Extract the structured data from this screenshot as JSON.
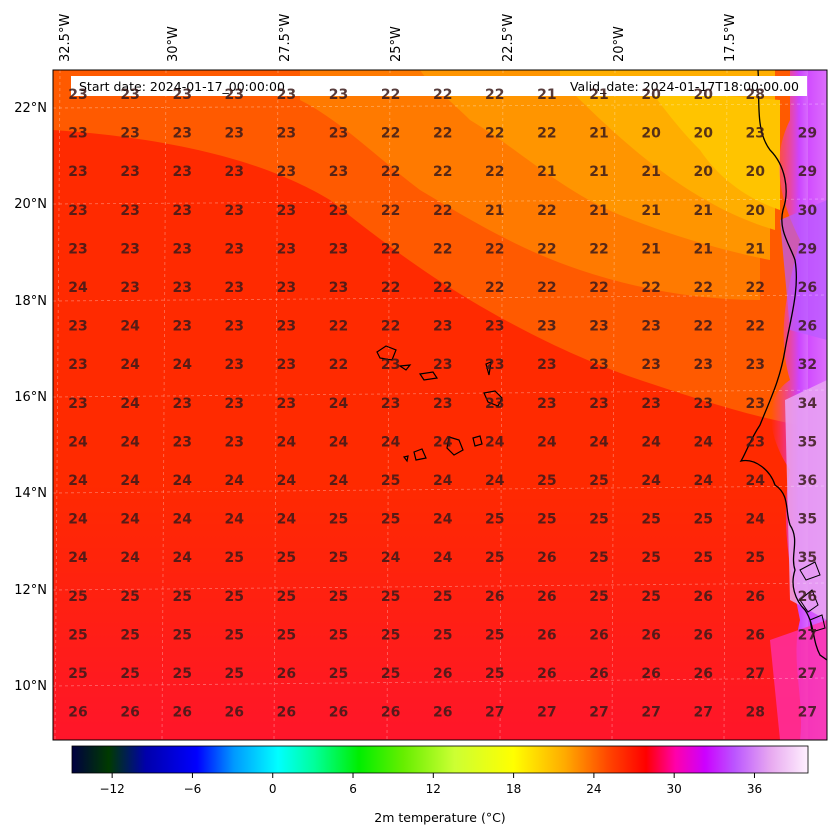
{
  "header": {
    "start_date": "Start date: 2024-01-17_00:00:00",
    "valid_date": "Valid_date: 2024-01-17T18:00:00.00"
  },
  "axes": {
    "lon_labels": [
      "32.5°W",
      "30°W",
      "27.5°W",
      "25°W",
      "22.5°W",
      "20°W",
      "17.5°W"
    ],
    "lat_labels": [
      "22°N",
      "20°N",
      "18°N",
      "16°N",
      "14°N",
      "12°N",
      "10°N"
    ]
  },
  "colorbar": {
    "label": "2m temperature ($^\\circ$C)",
    "label_display": "2m temperature (°C)",
    "ticks": [
      "−12",
      "−6",
      "0",
      "6",
      "12",
      "18",
      "24",
      "30",
      "36"
    ],
    "tick_values": [
      -12,
      -6,
      0,
      6,
      12,
      18,
      24,
      30,
      36
    ],
    "range": [
      -15,
      40
    ]
  },
  "grid_values": [
    [
      "23",
      "23",
      "23",
      "23",
      "23",
      "23",
      "22",
      "22",
      "22",
      "21",
      "21",
      "20",
      "20",
      "28"
    ],
    [
      "23",
      "23",
      "23",
      "23",
      "23",
      "23",
      "22",
      "22",
      "22",
      "22",
      "21",
      "20",
      "20",
      "23",
      "29"
    ],
    [
      "23",
      "23",
      "23",
      "23",
      "23",
      "23",
      "22",
      "22",
      "22",
      "21",
      "21",
      "21",
      "20",
      "20",
      "29"
    ],
    [
      "23",
      "23",
      "23",
      "23",
      "23",
      "23",
      "22",
      "22",
      "21",
      "22",
      "21",
      "21",
      "21",
      "20",
      "30"
    ],
    [
      "23",
      "23",
      "23",
      "23",
      "23",
      "23",
      "22",
      "22",
      "22",
      "22",
      "22",
      "21",
      "21",
      "21",
      "29"
    ],
    [
      "24",
      "23",
      "23",
      "23",
      "23",
      "23",
      "22",
      "22",
      "22",
      "22",
      "22",
      "22",
      "22",
      "22",
      "26"
    ],
    [
      "23",
      "24",
      "23",
      "23",
      "23",
      "22",
      "22",
      "23",
      "23",
      "23",
      "23",
      "23",
      "22",
      "22",
      "26"
    ],
    [
      "23",
      "24",
      "24",
      "23",
      "23",
      "22",
      "23",
      "23",
      "23",
      "23",
      "23",
      "23",
      "23",
      "23",
      "32"
    ],
    [
      "23",
      "24",
      "23",
      "23",
      "23",
      "24",
      "23",
      "23",
      "23",
      "23",
      "23",
      "23",
      "23",
      "23",
      "34"
    ],
    [
      "24",
      "24",
      "23",
      "23",
      "24",
      "24",
      "24",
      "24",
      "24",
      "24",
      "24",
      "24",
      "24",
      "23",
      "35"
    ],
    [
      "24",
      "24",
      "24",
      "24",
      "24",
      "24",
      "25",
      "24",
      "24",
      "25",
      "25",
      "24",
      "24",
      "24",
      "36"
    ],
    [
      "24",
      "24",
      "24",
      "24",
      "24",
      "25",
      "25",
      "24",
      "25",
      "25",
      "25",
      "25",
      "25",
      "24",
      "35"
    ],
    [
      "24",
      "24",
      "24",
      "25",
      "25",
      "25",
      "24",
      "24",
      "25",
      "26",
      "25",
      "25",
      "25",
      "25",
      "35"
    ],
    [
      "25",
      "25",
      "25",
      "25",
      "25",
      "25",
      "25",
      "25",
      "26",
      "26",
      "25",
      "25",
      "26",
      "26",
      "26"
    ],
    [
      "25",
      "25",
      "25",
      "25",
      "25",
      "25",
      "25",
      "25",
      "25",
      "26",
      "26",
      "26",
      "26",
      "26",
      "27"
    ],
    [
      "25",
      "25",
      "25",
      "25",
      "26",
      "25",
      "25",
      "26",
      "25",
      "26",
      "26",
      "26",
      "26",
      "27",
      "27"
    ],
    [
      "26",
      "26",
      "26",
      "26",
      "26",
      "26",
      "26",
      "26",
      "27",
      "27",
      "27",
      "27",
      "27",
      "28",
      "27"
    ]
  ]
}
